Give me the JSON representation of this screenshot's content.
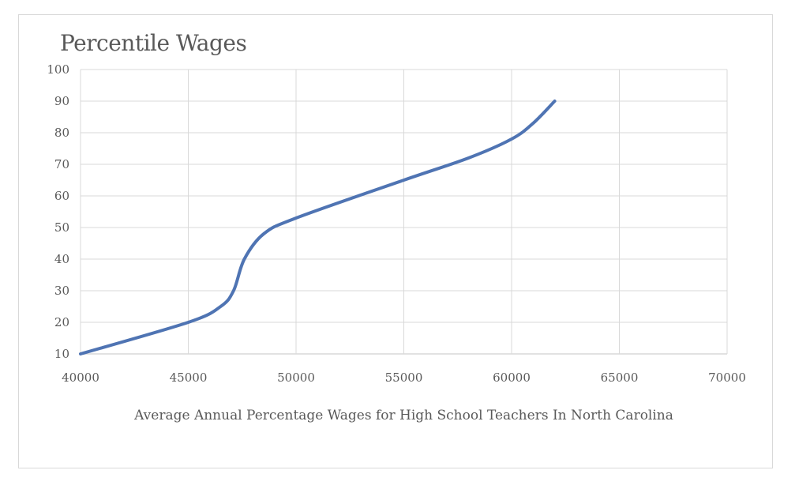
{
  "chart_data": {
    "type": "line",
    "title": "Percentile Wages",
    "xlabel": "Average Annual Percentage Wages for High School Teachers In North Carolina",
    "ylabel": "",
    "xlim": [
      40000,
      70000
    ],
    "ylim": [
      10,
      100
    ],
    "xticks": [
      40000,
      45000,
      50000,
      55000,
      60000,
      65000,
      70000
    ],
    "yticks": [
      10,
      20,
      30,
      40,
      50,
      60,
      70,
      80,
      90,
      100
    ],
    "grid": true,
    "legend": null,
    "series": [
      {
        "name": "Percentile",
        "color": "#4f74b3",
        "x": [
          40000,
          45000,
          46500,
          47100,
          47600,
          48500,
          50000,
          55000,
          58000,
          60000,
          61000,
          62000
        ],
        "y": [
          10,
          20,
          25,
          30,
          40,
          48,
          53,
          65,
          72,
          78,
          83,
          90
        ]
      }
    ]
  },
  "colors": {
    "line": "#4f74b3",
    "grid": "#d9d9d9",
    "text": "#595959"
  }
}
